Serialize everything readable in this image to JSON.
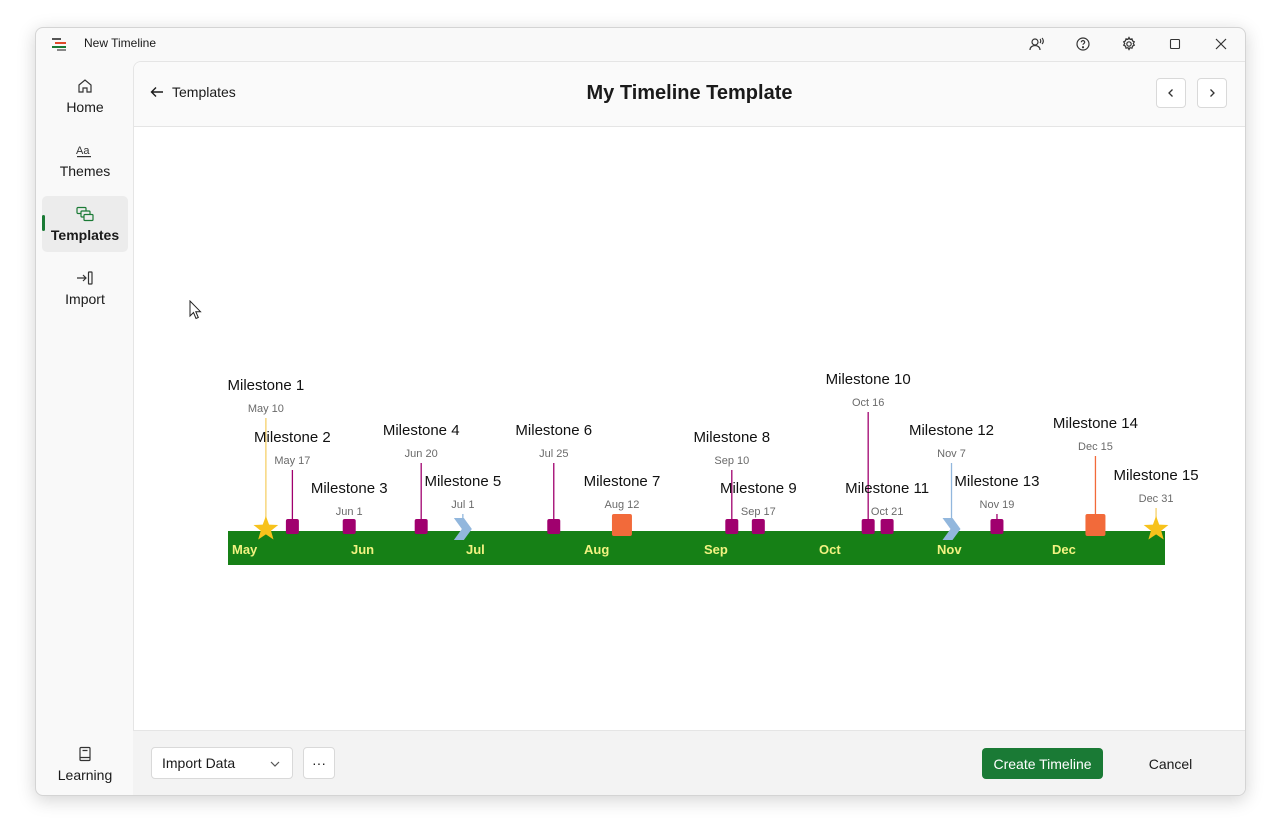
{
  "window": {
    "title": "New Timeline"
  },
  "sidebar": {
    "items": [
      {
        "label": "Home",
        "icon": "home-icon"
      },
      {
        "label": "Themes",
        "icon": "themes-icon"
      },
      {
        "label": "Templates",
        "icon": "templates-icon",
        "active": true
      },
      {
        "label": "Import",
        "icon": "import-icon"
      }
    ],
    "bottom": {
      "label": "Learning",
      "icon": "book-icon"
    }
  },
  "header": {
    "back_label": "Templates",
    "title": "My Timeline Template"
  },
  "footer": {
    "import_select": "Import Data",
    "more_label": "···",
    "create_label": "Create Timeline",
    "cancel_label": "Cancel"
  },
  "colors": {
    "accent": "#1a7a35",
    "band": "#168016",
    "month_text": "#f2f281",
    "milestone_pink": "#a0006e",
    "milestone_orange": "#f26a3a",
    "milestone_star": "#f7c21b",
    "milestone_chevron": "#92b7dd",
    "stem_star": "#f6d06a"
  },
  "timeline": {
    "months": [
      "May",
      "Jun",
      "Jul",
      "Aug",
      "Sep",
      "Oct",
      "Nov",
      "Dec"
    ],
    "milestones": [
      {
        "name": "Milestone 1",
        "date": "May 10",
        "day": 10,
        "shape": "star"
      },
      {
        "name": "Milestone 2",
        "date": "May 17",
        "day": 17,
        "shape": "square"
      },
      {
        "name": "Milestone 3",
        "date": "Jun 1",
        "day": 32,
        "shape": "square"
      },
      {
        "name": "Milestone 4",
        "date": "Jun 20",
        "day": 51,
        "shape": "square"
      },
      {
        "name": "Milestone 5",
        "date": "Jul 1",
        "day": 62,
        "shape": "chevron"
      },
      {
        "name": "Milestone 6",
        "date": "Jul 25",
        "day": 86,
        "shape": "square"
      },
      {
        "name": "Milestone 7",
        "date": "Aug 12",
        "day": 104,
        "shape": "bigsquare"
      },
      {
        "name": "Milestone 8",
        "date": "Sep 10",
        "day": 133,
        "shape": "square"
      },
      {
        "name": "Milestone 9",
        "date": "Sep 17",
        "day": 140,
        "shape": "square"
      },
      {
        "name": "Milestone 10",
        "date": "Oct 16",
        "day": 169,
        "shape": "square"
      },
      {
        "name": "Milestone 11",
        "date": "Oct 21",
        "day": 174,
        "shape": "square"
      },
      {
        "name": "Milestone 12",
        "date": "Nov 7",
        "day": 191,
        "shape": "chevron"
      },
      {
        "name": "Milestone 13",
        "date": "Nov 19",
        "day": 203,
        "shape": "square"
      },
      {
        "name": "Milestone 14",
        "date": "Dec 15",
        "day": 229,
        "shape": "bigsquare"
      },
      {
        "name": "Milestone 15",
        "date": "Dec 31",
        "day": 245,
        "shape": "star"
      }
    ]
  }
}
